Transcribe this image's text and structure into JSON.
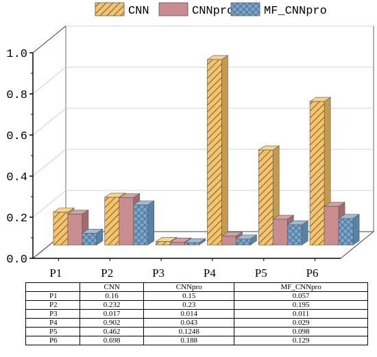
{
  "chart_data": {
    "type": "bar",
    "categories": [
      "P1",
      "P2",
      "P3",
      "P4",
      "P5",
      "P6"
    ],
    "series": [
      {
        "name": "CNN",
        "values": [
          0.16,
          0.232,
          0.017,
          0.902,
          0.462,
          0.698
        ],
        "color": "#f5c46a",
        "pattern": "diagonal-hatch"
      },
      {
        "name": "CNNpro",
        "values": [
          0.15,
          0.23,
          0.014,
          0.043,
          0.1248,
          0.188
        ],
        "color": "#c98c8f",
        "pattern": "solid"
      },
      {
        "name": "MF_CNNpro",
        "values": [
          0.057,
          0.195,
          0.011,
          0.029,
          0.098,
          0.129
        ],
        "color": "#7aa6cc",
        "pattern": "crosshatch"
      }
    ],
    "ylim": [
      0,
      1.0
    ],
    "yticks": [
      "0.0",
      "0.2",
      "0.4",
      "0.6",
      "0.8",
      "1.0"
    ],
    "grid": true,
    "legend_position": "top",
    "style": "3d-bar"
  },
  "table": {
    "headers": [
      "",
      "CNN",
      "CNNpro",
      "MF_CNNpro"
    ],
    "rows": [
      [
        "P1",
        "0.16",
        "0.15",
        "0.057"
      ],
      [
        "P2",
        "0.232",
        "0.23",
        "0.195"
      ],
      [
        "P3",
        "0.017",
        "0.014",
        "0.011"
      ],
      [
        "P4",
        "0.902",
        "0.043",
        "0.029"
      ],
      [
        "P5",
        "0.462",
        "0.1248",
        "0.098"
      ],
      [
        "P6",
        "0.698",
        "0.188",
        "0.129"
      ]
    ]
  }
}
